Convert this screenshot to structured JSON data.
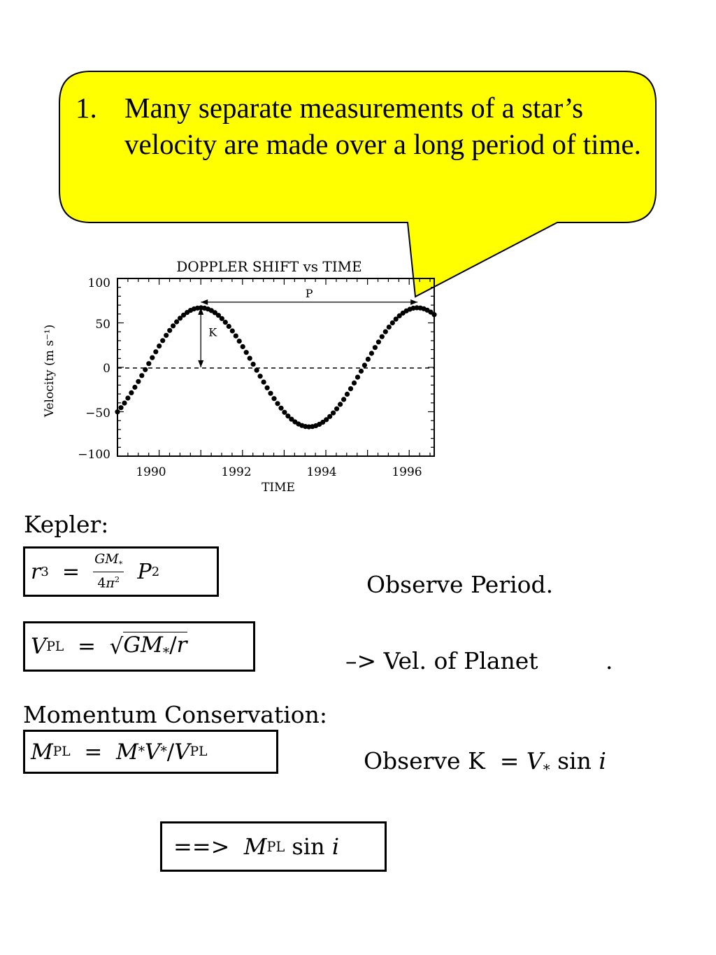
{
  "callout": {
    "number": "1.",
    "text": "Many separate measurements of a star’s velocity are made over a long period of time.",
    "fill": "#ffff00"
  },
  "chart_data": {
    "type": "scatter",
    "title": "DOPPLER SHIFT vs TIME",
    "xlabel": "TIME",
    "ylabel": "Velocity (m s⁻¹)",
    "xlim": [
      1989.0,
      1996.6
    ],
    "ylim": [
      -100,
      100
    ],
    "xticks": [
      "1990",
      "1992",
      "1994",
      "1996"
    ],
    "yticks": [
      "100",
      "50",
      "0",
      "−50",
      "−100"
    ],
    "series": [
      {
        "model": "sine",
        "amplitude": 67,
        "period_years": 5.2,
        "peak_time": 1991.0,
        "t_start": 1989.0,
        "t_end": 1996.6,
        "n_points": 92
      }
    ],
    "zero_line": "dashed",
    "annotations": [
      {
        "label": "P",
        "from": 1991.0,
        "to": 1996.2,
        "value": 67
      },
      {
        "label": "K",
        "time": 1991.0,
        "from": 0,
        "to": 67
      }
    ]
  },
  "equations": {
    "kepler_title": "Kepler:",
    "observe_period": "Observe Period.",
    "vel_planet": "–> Vel.  of Planet",
    "vel_planet_dot": ".",
    "momentum_title": "Momentum  Conservation:",
    "observe_k": "Observe K",
    "arrow": "==>"
  }
}
